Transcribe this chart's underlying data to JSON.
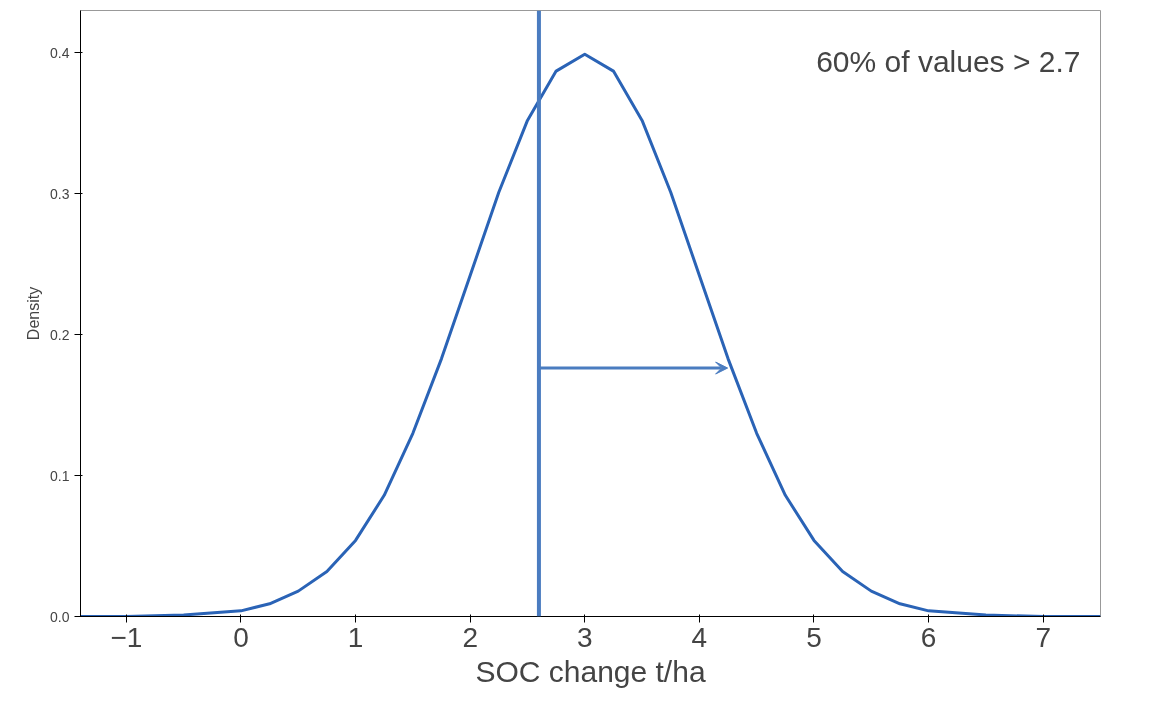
{
  "chart_data": {
    "type": "line",
    "xlabel": "SOC change t/ha",
    "ylabel": "Density",
    "x": [
      -1.4,
      -1,
      -0.5,
      0,
      0.25,
      0.5,
      0.75,
      1,
      1.25,
      1.5,
      1.75,
      2,
      2.25,
      2.5,
      2.75,
      3,
      3.25,
      3.5,
      3.75,
      4,
      4.25,
      4.5,
      4.75,
      5,
      5.25,
      5.5,
      5.75,
      6,
      6.5,
      7,
      7.5
    ],
    "series": [
      {
        "color": "#2a63b6",
        "values": [
          0.0,
          0.0,
          0.001,
          0.004,
          0.009,
          0.018,
          0.032,
          0.054,
          0.086,
          0.13,
          0.183,
          0.242,
          0.301,
          0.352,
          0.387,
          0.399,
          0.387,
          0.352,
          0.301,
          0.242,
          0.183,
          0.13,
          0.086,
          0.054,
          0.032,
          0.018,
          0.009,
          0.004,
          0.001,
          0.0,
          0.0
        ]
      }
    ],
    "xlim": [
      -1.4,
      7.5
    ],
    "xticks": [
      -1,
      0,
      1,
      2,
      3,
      4,
      5,
      6,
      7
    ],
    "ylim": [
      0,
      0.43
    ],
    "yticks": [
      {
        "value": 0,
        "label": "0.0"
      },
      0.1,
      0.2,
      0.3,
      0.4
    ],
    "ref_lines": [
      {
        "axis": "x",
        "value": 2.6,
        "color": "#4a7cc0"
      }
    ],
    "annotations": [
      "60% of values > 2.7"
    ],
    "grid": false,
    "marker": "none",
    "line_style": "solid"
  }
}
